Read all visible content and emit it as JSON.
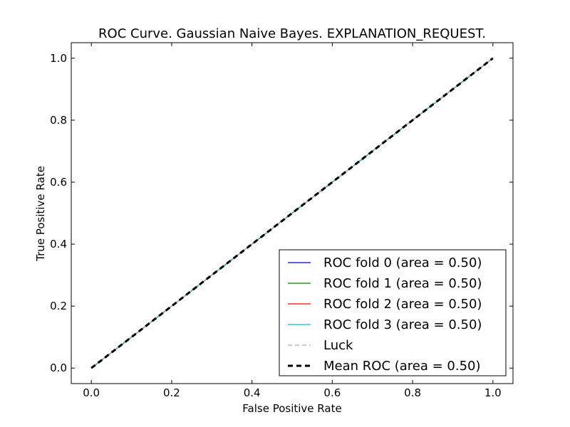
{
  "chart_data": {
    "type": "line",
    "title": "ROC Curve. Gaussian Naive Bayes. EXPLANATION_REQUEST.",
    "xlabel": "False Positive Rate",
    "ylabel": "True Positive Rate",
    "xlim": [
      -0.05,
      1.05
    ],
    "ylim": [
      -0.05,
      1.05
    ],
    "x_ticks": [
      "0.0",
      "0.2",
      "0.4",
      "0.6",
      "0.8",
      "1.0"
    ],
    "y_ticks": [
      "0.0",
      "0.2",
      "0.4",
      "0.6",
      "0.8",
      "1.0"
    ],
    "grid": false,
    "legend_position": "lower-right",
    "series": [
      {
        "name": "ROC fold 0 (area = 0.50)",
        "color": "#0000bf",
        "dash": "solid",
        "x": [
          0,
          1
        ],
        "y": [
          0,
          1
        ]
      },
      {
        "name": "ROC fold 1 (area = 0.50)",
        "color": "#008000",
        "dash": "solid",
        "x": [
          0,
          1
        ],
        "y": [
          0,
          1
        ]
      },
      {
        "name": "ROC fold 2 (area = 0.50)",
        "color": "#ff0000",
        "dash": "solid",
        "x": [
          0,
          1
        ],
        "y": [
          0,
          1
        ]
      },
      {
        "name": "ROC fold 3 (area = 0.50)",
        "color": "#00bfbf",
        "dash": "solid",
        "x": [
          0,
          1
        ],
        "y": [
          0,
          1
        ]
      },
      {
        "name": "Luck",
        "color": "#aaaaaa",
        "dash": "dashed",
        "x": [
          0,
          1
        ],
        "y": [
          0,
          1
        ]
      },
      {
        "name": "Mean ROC (area = 0.50)",
        "color": "#000000",
        "dash": "dashed-bold",
        "x": [
          0,
          1
        ],
        "y": [
          0,
          1
        ]
      }
    ]
  }
}
